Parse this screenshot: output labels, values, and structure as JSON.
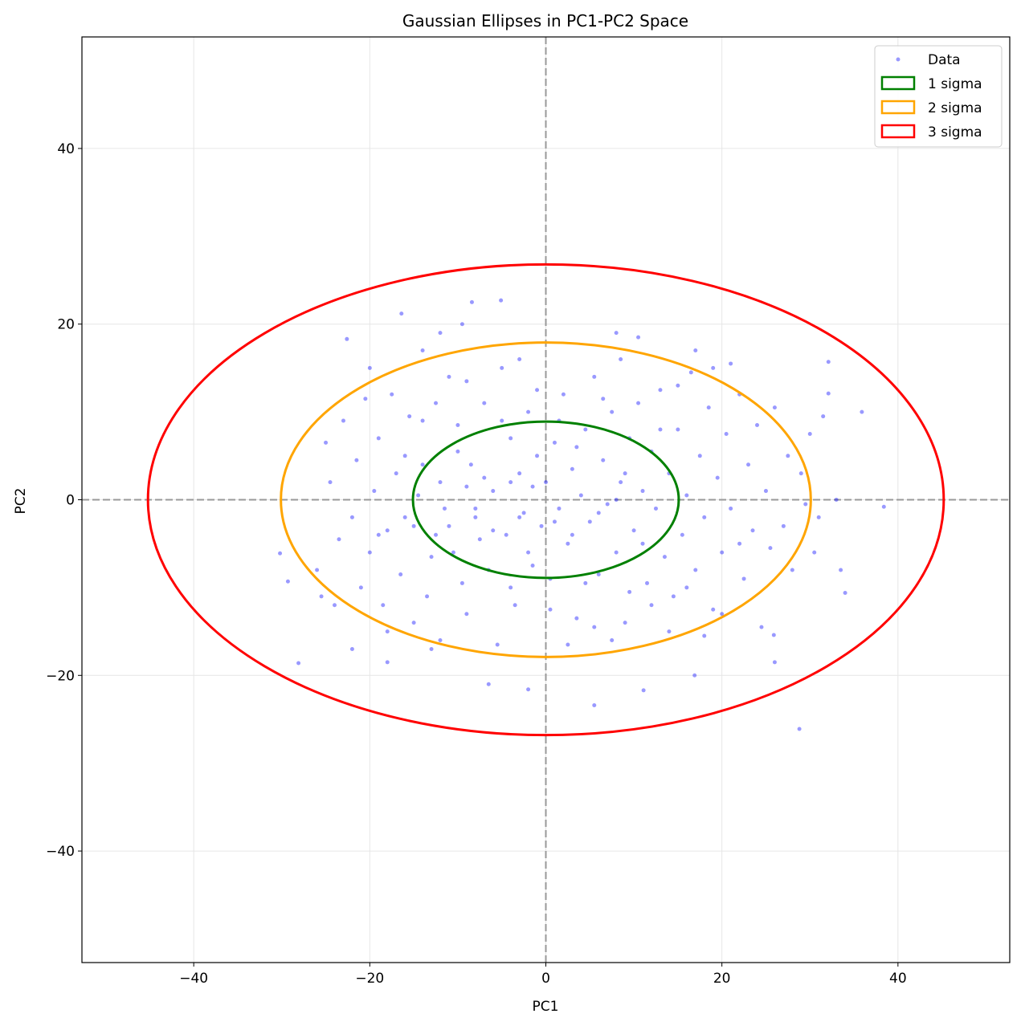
{
  "chart_data": {
    "type": "scatter",
    "title": "Gaussian Ellipses in PC1-PC2 Space",
    "xlabel": "PC1",
    "ylabel": "PC2",
    "xlim": [
      -52.7,
      52.7
    ],
    "ylim": [
      -52.7,
      52.7
    ],
    "xticks": [
      -40,
      -20,
      0,
      20,
      40
    ],
    "yticks": [
      -40,
      -20,
      0,
      20,
      40
    ],
    "xtick_labels": [
      "−40",
      "−20",
      "0",
      "20",
      "40"
    ],
    "ytick_labels": [
      "−40",
      "−20",
      "0",
      "20",
      "40"
    ],
    "grid": true,
    "reference_lines": {
      "x": 0,
      "y": 0,
      "style": "dashed",
      "color": "#999999"
    },
    "legend": {
      "position": "top-right",
      "entries": [
        "Data",
        "1 sigma",
        "2 sigma",
        "3 sigma"
      ]
    },
    "ellipses": [
      {
        "name": "1 sigma",
        "center": [
          0,
          0
        ],
        "rx": 15.1,
        "ry": 8.9,
        "color": "#008000"
      },
      {
        "name": "2 sigma",
        "center": [
          0,
          0
        ],
        "rx": 30.1,
        "ry": 17.9,
        "color": "#FFA500"
      },
      {
        "name": "3 sigma",
        "center": [
          0,
          0
        ],
        "rx": 45.2,
        "ry": 26.8,
        "color": "#FF0000"
      }
    ],
    "series": [
      {
        "name": "Data",
        "color": "#0000FF",
        "points": [
          [
            -28.1,
            -18.6
          ],
          [
            -30.2,
            -6.1
          ],
          [
            -29.3,
            -9.3
          ],
          [
            28.8,
            -26.1
          ],
          [
            35.9,
            10.0
          ],
          [
            34.0,
            -10.6
          ],
          [
            38.4,
            -0.8
          ],
          [
            32.1,
            12.1
          ],
          [
            -16.4,
            21.2
          ],
          [
            -5.1,
            22.7
          ],
          [
            -8.4,
            22.5
          ],
          [
            5.5,
            -23.4
          ],
          [
            11.1,
            -21.7
          ],
          [
            -6.5,
            -21.0
          ],
          [
            -2.0,
            -21.6
          ],
          [
            16.9,
            -20.0
          ],
          [
            -22.6,
            18.3
          ],
          [
            32.1,
            15.7
          ],
          [
            25.9,
            -15.4
          ],
          [
            -25.0,
            6.5
          ],
          [
            -24.0,
            -12.0
          ],
          [
            -22.0,
            -17.0
          ],
          [
            -20.0,
            15.0
          ],
          [
            -18.0,
            -15.0
          ],
          [
            -17.5,
            12.0
          ],
          [
            -16.0,
            5.0
          ],
          [
            -15.0,
            -3.0
          ],
          [
            -14.0,
            9.0
          ],
          [
            -13.5,
            -11.0
          ],
          [
            -12.0,
            2.0
          ],
          [
            -11.0,
            14.0
          ],
          [
            -10.5,
            -6.0
          ],
          [
            -10.0,
            8.5
          ],
          [
            -9.0,
            -13.0
          ],
          [
            -8.5,
            4.0
          ],
          [
            -8.0,
            -2.0
          ],
          [
            -7.0,
            11.0
          ],
          [
            -6.5,
            -8.0
          ],
          [
            -6.0,
            1.0
          ],
          [
            -5.0,
            15.0
          ],
          [
            -4.5,
            -4.0
          ],
          [
            -4.0,
            7.0
          ],
          [
            -3.5,
            -12.0
          ],
          [
            -3.0,
            3.0
          ],
          [
            -2.5,
            -1.5
          ],
          [
            -2.0,
            10.0
          ],
          [
            -1.5,
            -7.5
          ],
          [
            -1.0,
            5.0
          ],
          [
            -0.5,
            -3.0
          ],
          [
            0.0,
            2.0
          ],
          [
            0.5,
            -9.0
          ],
          [
            1.0,
            6.5
          ],
          [
            1.5,
            -1.0
          ],
          [
            2.0,
            12.0
          ],
          [
            2.5,
            -5.0
          ],
          [
            3.0,
            3.5
          ],
          [
            3.5,
            -13.5
          ],
          [
            4.0,
            0.5
          ],
          [
            4.5,
            8.0
          ],
          [
            5.0,
            -2.5
          ],
          [
            5.5,
            14.0
          ],
          [
            6.0,
            -8.5
          ],
          [
            6.5,
            4.5
          ],
          [
            7.0,
            -0.5
          ],
          [
            7.5,
            10.0
          ],
          [
            8.0,
            -6.0
          ],
          [
            8.5,
            2.0
          ],
          [
            9.0,
            -14.0
          ],
          [
            9.5,
            7.0
          ],
          [
            10.0,
            -3.5
          ],
          [
            10.5,
            18.5
          ],
          [
            11.0,
            1.0
          ],
          [
            11.5,
            -9.5
          ],
          [
            12.0,
            5.5
          ],
          [
            12.5,
            -1.0
          ],
          [
            13.0,
            12.5
          ],
          [
            13.5,
            -6.5
          ],
          [
            14.0,
            3.0
          ],
          [
            14.5,
            -11.0
          ],
          [
            15.0,
            8.0
          ],
          [
            15.5,
            -4.0
          ],
          [
            16.0,
            0.5
          ],
          [
            16.5,
            14.5
          ],
          [
            17.0,
            -8.0
          ],
          [
            17.5,
            5.0
          ],
          [
            18.0,
            -2.0
          ],
          [
            18.5,
            10.5
          ],
          [
            19.0,
            -12.5
          ],
          [
            19.5,
            2.5
          ],
          [
            20.0,
            -6.0
          ],
          [
            20.5,
            7.5
          ],
          [
            21.0,
            -1.0
          ],
          [
            22.0,
            12.0
          ],
          [
            22.5,
            -9.0
          ],
          [
            23.0,
            4.0
          ],
          [
            23.5,
            -3.5
          ],
          [
            24.0,
            8.5
          ],
          [
            24.5,
            -14.5
          ],
          [
            25.0,
            1.0
          ],
          [
            25.5,
            -5.5
          ],
          [
            26.0,
            10.5
          ],
          [
            27.0,
            -3.0
          ],
          [
            27.5,
            5.0
          ],
          [
            28.0,
            -8.0
          ],
          [
            29.0,
            3.0
          ],
          [
            30.0,
            7.5
          ],
          [
            30.5,
            -6.0
          ],
          [
            31.0,
            -2.0
          ],
          [
            33.0,
            0.0
          ],
          [
            33.5,
            -8.0
          ],
          [
            31.5,
            9.5
          ],
          [
            29.5,
            -0.5
          ],
          [
            -26.0,
            -8.0
          ],
          [
            -25.5,
            -11.0
          ],
          [
            -24.5,
            2.0
          ],
          [
            -23.5,
            -4.5
          ],
          [
            -23.0,
            9.0
          ],
          [
            -22.0,
            -2.0
          ],
          [
            -21.5,
            4.5
          ],
          [
            -21.0,
            -10.0
          ],
          [
            -20.5,
            11.5
          ],
          [
            -20.0,
            -6.0
          ],
          [
            -19.5,
            1.0
          ],
          [
            -19.0,
            7.0
          ],
          [
            -18.5,
            -12.0
          ],
          [
            -18.0,
            -3.5
          ],
          [
            -17.0,
            3.0
          ],
          [
            -16.5,
            -8.5
          ],
          [
            -15.5,
            9.5
          ],
          [
            -15.0,
            -14.0
          ],
          [
            -14.5,
            0.5
          ],
          [
            -13.0,
            -6.5
          ],
          [
            -12.5,
            11.0
          ],
          [
            -12.0,
            -16.0
          ],
          [
            -11.5,
            -1.0
          ],
          [
            -10.0,
            5.5
          ],
          [
            -9.5,
            -9.5
          ],
          [
            -9.0,
            13.5
          ],
          [
            -7.5,
            -4.5
          ],
          [
            -7.0,
            2.5
          ],
          [
            -5.5,
            -16.5
          ],
          [
            -5.0,
            9.0
          ],
          [
            -4.0,
            -10.0
          ],
          [
            -3.0,
            16.0
          ],
          [
            -2.0,
            -6.0
          ],
          [
            -1.0,
            12.5
          ],
          [
            0.5,
            -12.5
          ],
          [
            1.5,
            9.0
          ],
          [
            2.5,
            -16.5
          ],
          [
            3.5,
            6.0
          ],
          [
            4.5,
            -9.5
          ],
          [
            5.5,
            -14.5
          ],
          [
            6.5,
            11.5
          ],
          [
            7.5,
            -16.0
          ],
          [
            8.5,
            16.0
          ],
          [
            9.5,
            -10.5
          ],
          [
            10.5,
            11.0
          ],
          [
            12.0,
            -12.0
          ],
          [
            13.0,
            8.0
          ],
          [
            14.0,
            -15.0
          ],
          [
            15.0,
            13.0
          ],
          [
            16.0,
            -10.0
          ],
          [
            17.0,
            17.0
          ],
          [
            18.0,
            -15.5
          ],
          [
            19.0,
            15.0
          ],
          [
            20.0,
            -13.0
          ],
          [
            21.0,
            15.5
          ],
          [
            22.0,
            -5.0
          ],
          [
            -12.0,
            19.0
          ],
          [
            -9.5,
            20.0
          ],
          [
            -14.0,
            17.0
          ],
          [
            8.0,
            19.0
          ],
          [
            -18.0,
            -18.5
          ],
          [
            -13.0,
            -17.0
          ],
          [
            26.0,
            -18.5
          ],
          [
            -19.0,
            -4.0
          ],
          [
            -16.0,
            -2.0
          ],
          [
            -11.0,
            -3.0
          ],
          [
            -8.0,
            -1.0
          ],
          [
            -6.0,
            -3.5
          ],
          [
            -3.0,
            -2.0
          ],
          [
            1.0,
            -2.5
          ],
          [
            3.0,
            -4.0
          ],
          [
            6.0,
            -1.5
          ],
          [
            8.0,
            0.0
          ],
          [
            9.0,
            3.0
          ],
          [
            11.0,
            -5.0
          ],
          [
            -1.5,
            1.5
          ],
          [
            -4.0,
            2.0
          ],
          [
            -9.0,
            1.5
          ],
          [
            -12.5,
            -4.0
          ],
          [
            -14.0,
            4.0
          ]
        ]
      }
    ]
  }
}
